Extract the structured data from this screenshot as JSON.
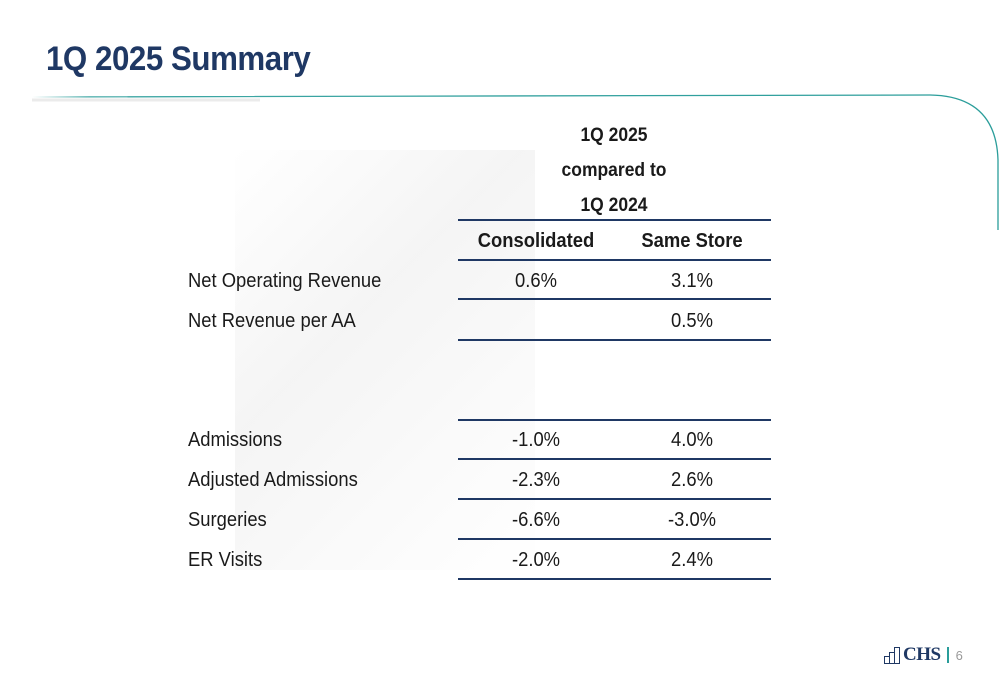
{
  "title": "1Q 2025 Summary",
  "header": {
    "line1": "1Q 2025",
    "line2": "compared to",
    "line3": "1Q 2024"
  },
  "columns": [
    "Consolidated",
    "Same Store"
  ],
  "rows": [
    {
      "label": "Net Operating Revenue",
      "consolidated": "0.6%",
      "same_store": "3.1%"
    },
    {
      "label": "Net Revenue per AA",
      "consolidated": "",
      "same_store": "0.5%"
    },
    {
      "label": "Admissions",
      "consolidated": "-1.0%",
      "same_store": "4.0%"
    },
    {
      "label": "Adjusted Admissions",
      "consolidated": "-2.3%",
      "same_store": "2.6%"
    },
    {
      "label": "Surgeries",
      "consolidated": "-6.6%",
      "same_store": "-3.0%"
    },
    {
      "label": "ER Visits",
      "consolidated": "-2.0%",
      "same_store": "2.4%"
    }
  ],
  "footer": {
    "logo": "CHS",
    "page": "6"
  },
  "colors": {
    "title": "#1f3864",
    "rule": "#1f3864",
    "accent_line": "#2a9d9a"
  }
}
